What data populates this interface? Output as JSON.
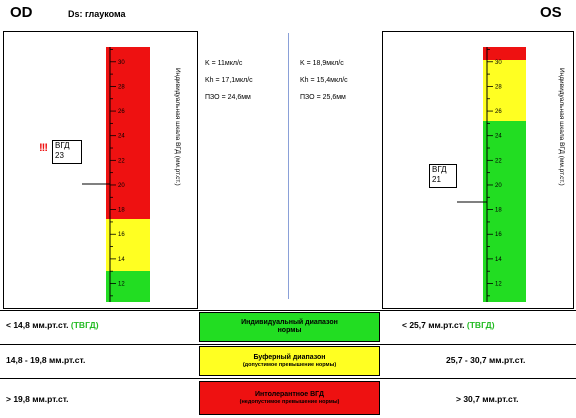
{
  "header": {
    "od_label": "OD",
    "diagnosis": "Ds: глаукома",
    "os_label": "OS"
  },
  "od": {
    "params": [
      "K = 11мкл/с",
      "Kh = 17,1мкл/с",
      "ПЗО = 24,6мм"
    ],
    "scale_title": "Индивидуальная шкала ВГД (мм.рт.ст.)",
    "vgd_label": "ВГД",
    "vgd_value": "23",
    "vgd_alert": "!!!",
    "ticks": [
      "30",
      "28",
      "26",
      "24",
      "22",
      "20",
      "18",
      "16",
      "14",
      "12"
    ],
    "zones": {
      "green_below": 14.8,
      "yellow_below": 19.8
    },
    "iop": 23
  },
  "os": {
    "params": [
      "K = 18,9мкл/с",
      "Kh = 15,4мкл/с",
      "ПЗО = 25,6мм"
    ],
    "scale_title": "Индивидуальная шкала ВГД (мм.рт.ст.)",
    "vgd_label": "ВГД",
    "vgd_value": "21",
    "ticks": [
      "30",
      "28",
      "26",
      "24",
      "22",
      "20",
      "18",
      "16",
      "14",
      "12"
    ],
    "zones": {
      "green_below": 25.7,
      "yellow_below": 30.7
    },
    "iop": 21
  },
  "ranges": {
    "row1": {
      "od_text": "< 14,8 мм.рт.ст.",
      "od_suffix": "(ТВГД)",
      "center_title": "Индивидуальный диапазон нормы",
      "os_text": "< 25,7 мм.рт.ст.",
      "os_suffix": "(ТВГД)"
    },
    "row2": {
      "od_text": "14,8 - 19,8 мм.рт.ст.",
      "center_title": "Буферный диапазон",
      "center_note": "(допустимое превышение нормы)",
      "os_text": "25,7 - 30,7 мм.рт.ст."
    },
    "row3": {
      "od_text": "> 19,8 мм.рт.ст.",
      "center_title": "Интолерантное ВГД",
      "center_note": "(недопустимое превышение нормы)",
      "os_text": "> 30,7 мм.рт.ст."
    }
  },
  "colors": {
    "green": "#22dd22",
    "yellow": "#ffff22",
    "red": "#ee1111",
    "center_line": "#8aa0d8"
  }
}
